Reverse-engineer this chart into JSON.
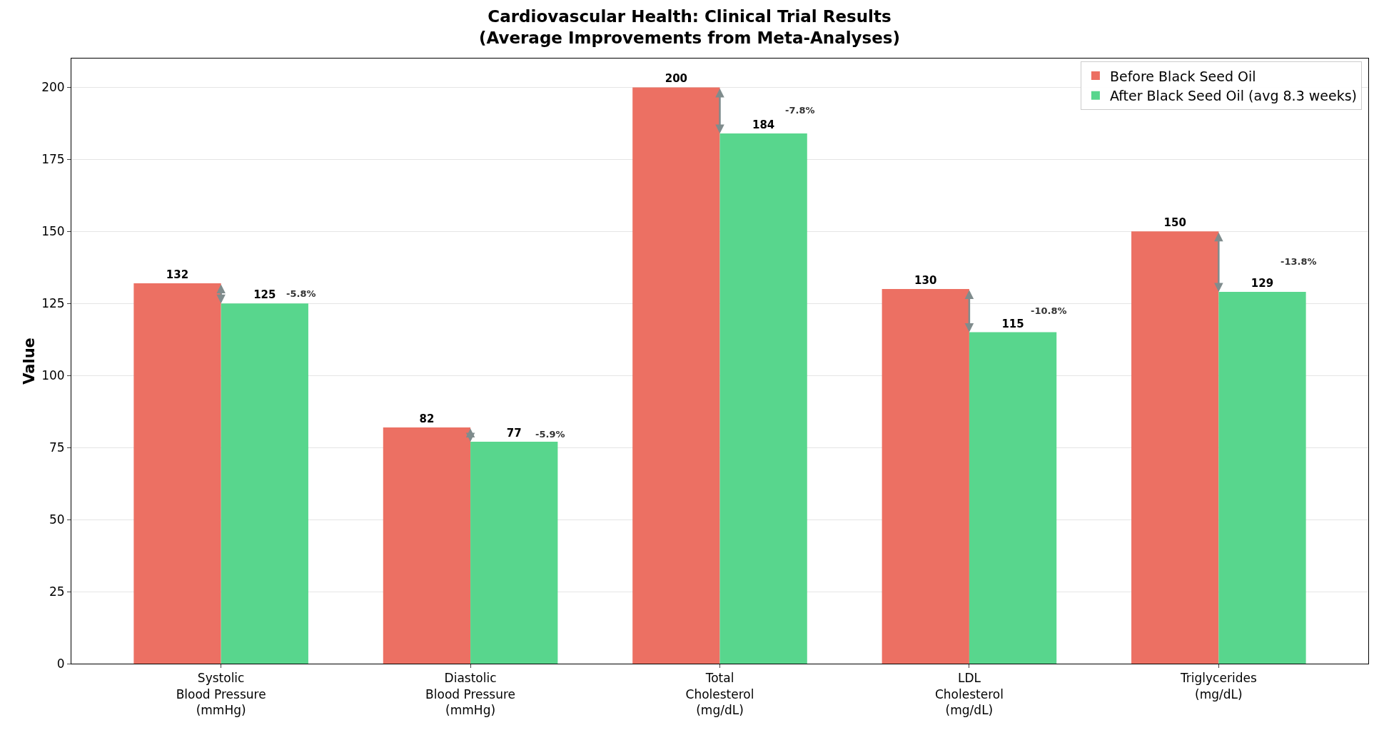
{
  "chart_data": {
    "type": "bar",
    "title": "Cardiovascular Health: Clinical Trial Results\n(Average Improvements from Meta-Analyses)",
    "ylabel": "Value",
    "categories": [
      "Systolic\nBlood Pressure\n(mmHg)",
      "Diastolic\nBlood Pressure\n(mmHg)",
      "Total\nCholesterol\n(mg/dL)",
      "LDL\nCholesterol\n(mg/dL)",
      "Triglycerides\n(mg/dL)"
    ],
    "series": [
      {
        "name": "Before Black Seed Oil",
        "color": "#ec7063",
        "values": [
          132,
          82,
          200,
          130,
          150
        ]
      },
      {
        "name": "After Black Seed Oil (avg 8.3 weeks)",
        "color": "#58d68d",
        "values": [
          125,
          77,
          184,
          115,
          129
        ]
      }
    ],
    "data_labels": true,
    "annotations": [
      "-5.8%",
      "-5.9%",
      "-7.8%",
      "-10.8%",
      "-13.8%"
    ],
    "ylim": [
      0,
      210
    ],
    "yticks": [
      0,
      25,
      50,
      75,
      100,
      125,
      150,
      175,
      200
    ],
    "grid": "y",
    "legend": "top right"
  }
}
